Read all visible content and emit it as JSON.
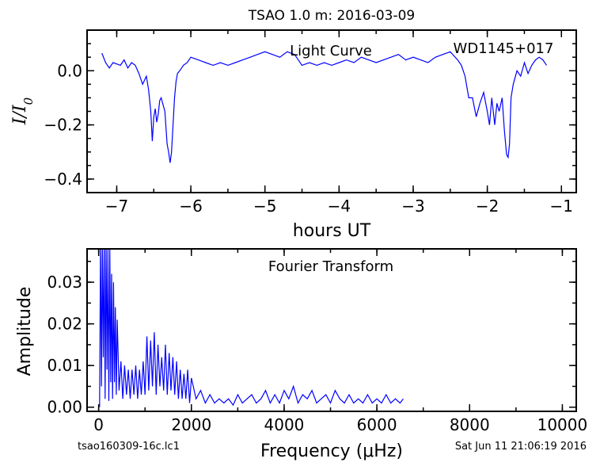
{
  "figure_title": "TSAO 1.0 m:  2016-03-09",
  "footer_left": "tsao160309-16c.lc1",
  "footer_right": "Sat Jun 11 21:06:19 2016",
  "chart_data": [
    {
      "type": "line",
      "annotation_left": "Light Curve",
      "annotation_right": "WD1145+017",
      "xlabel": "hours UT",
      "ylabel": "I/I0",
      "xlim": [
        -7.4,
        -0.8
      ],
      "ylim": [
        -0.45,
        0.15
      ],
      "xticks": [
        -7,
        -6,
        -5,
        -4,
        -3,
        -2,
        -1
      ],
      "xtick_labels": [
        "−7",
        "−6",
        "−5",
        "−4",
        "−3",
        "−2",
        "−1"
      ],
      "yticks": [
        0.0,
        -0.2,
        -0.4
      ],
      "ytick_labels": [
        "0.0",
        "−0.2",
        "−0.4"
      ],
      "color": "#0000ff",
      "series": [
        {
          "x": [
            -7.2,
            -7.15,
            -7.1,
            -7.05,
            -7.0,
            -6.95,
            -6.9,
            -6.85,
            -6.8,
            -6.75,
            -6.7,
            -6.65,
            -6.6,
            -6.57,
            -6.54,
            -6.52,
            -6.5,
            -6.48,
            -6.46,
            -6.44,
            -6.42,
            -6.4,
            -6.38,
            -6.35,
            -6.32,
            -6.3,
            -6.28,
            -6.26,
            -6.24,
            -6.22,
            -6.2,
            -6.18,
            -6.15,
            -6.1,
            -6.05,
            -6.0,
            -5.9,
            -5.8,
            -5.7,
            -5.6,
            -5.5,
            -5.4,
            -5.3,
            -5.2,
            -5.1,
            -5.0,
            -4.9,
            -4.8,
            -4.7,
            -4.6,
            -4.5,
            -4.4,
            -4.3,
            -4.2,
            -4.1,
            -4.0,
            -3.9,
            -3.8,
            -3.7,
            -3.6,
            -3.5,
            -3.4,
            -3.3,
            -3.2,
            -3.1,
            -3.0,
            -2.9,
            -2.8,
            -2.7,
            -2.6,
            -2.5,
            -2.4,
            -2.35,
            -2.3,
            -2.25,
            -2.2,
            -2.15,
            -2.1,
            -2.05,
            -2.0,
            -1.97,
            -1.94,
            -1.9,
            -1.87,
            -1.84,
            -1.8,
            -1.77,
            -1.74,
            -1.72,
            -1.7,
            -1.68,
            -1.65,
            -1.6,
            -1.55,
            -1.5,
            -1.45,
            -1.4,
            -1.35,
            -1.3,
            -1.25,
            -1.2
          ],
          "y": [
            0.065,
            0.03,
            0.01,
            0.03,
            0.025,
            0.02,
            0.04,
            0.01,
            0.03,
            0.02,
            -0.01,
            -0.05,
            -0.02,
            -0.07,
            -0.15,
            -0.26,
            -0.17,
            -0.14,
            -0.19,
            -0.16,
            -0.11,
            -0.1,
            -0.12,
            -0.15,
            -0.27,
            -0.3,
            -0.34,
            -0.3,
            -0.2,
            -0.1,
            -0.04,
            -0.01,
            0.0,
            0.02,
            0.03,
            0.05,
            0.04,
            0.03,
            0.02,
            0.03,
            0.02,
            0.03,
            0.04,
            0.05,
            0.06,
            0.07,
            0.06,
            0.05,
            0.07,
            0.06,
            0.02,
            0.03,
            0.02,
            0.03,
            0.02,
            0.03,
            0.04,
            0.03,
            0.05,
            0.04,
            0.03,
            0.04,
            0.05,
            0.06,
            0.04,
            0.05,
            0.04,
            0.03,
            0.05,
            0.06,
            0.07,
            0.04,
            0.02,
            -0.02,
            -0.1,
            -0.1,
            -0.17,
            -0.12,
            -0.08,
            -0.15,
            -0.2,
            -0.1,
            -0.2,
            -0.12,
            -0.15,
            -0.1,
            -0.22,
            -0.31,
            -0.32,
            -0.27,
            -0.1,
            -0.05,
            0.0,
            -0.02,
            0.03,
            -0.01,
            0.02,
            0.04,
            0.05,
            0.04,
            0.02
          ]
        }
      ]
    },
    {
      "type": "line",
      "annotation": "Fourier Transform",
      "xlabel": "Frequency (μHz)",
      "ylabel": "Amplitude",
      "xlim": [
        -250,
        10300
      ],
      "ylim": [
        -0.001,
        0.038
      ],
      "xticks": [
        0,
        2000,
        4000,
        6000,
        8000,
        10000
      ],
      "xtick_labels": [
        "0",
        "2000",
        "4000",
        "6000",
        "8000",
        "10000"
      ],
      "yticks": [
        0.0,
        0.01,
        0.02,
        0.03
      ],
      "ytick_labels": [
        "0.00",
        "0.01",
        "0.02",
        "0.03"
      ],
      "color": "#0000ff",
      "series": [
        {
          "x": [
            20,
            40,
            60,
            80,
            100,
            120,
            140,
            160,
            180,
            200,
            220,
            240,
            260,
            280,
            300,
            320,
            340,
            360,
            380,
            400,
            440,
            480,
            520,
            560,
            600,
            640,
            680,
            720,
            760,
            800,
            840,
            880,
            920,
            960,
            1000,
            1040,
            1080,
            1120,
            1160,
            1200,
            1240,
            1280,
            1320,
            1360,
            1400,
            1440,
            1480,
            1520,
            1560,
            1600,
            1640,
            1680,
            1720,
            1760,
            1800,
            1840,
            1880,
            1920,
            1960,
            2000,
            2100,
            2200,
            2300,
            2400,
            2500,
            2600,
            2700,
            2800,
            2900,
            3000,
            3100,
            3200,
            3300,
            3400,
            3500,
            3600,
            3700,
            3800,
            3900,
            4000,
            4100,
            4200,
            4300,
            4400,
            4500,
            4600,
            4700,
            4800,
            4900,
            5000,
            5100,
            5200,
            5300,
            5400,
            5500,
            5600,
            5700,
            5800,
            5900,
            6000,
            6100,
            6200,
            6300,
            6400,
            6500,
            6570
          ],
          "y": [
            0.0,
            0.04,
            0.005,
            0.04,
            0.012,
            0.04,
            0.002,
            0.04,
            0.009,
            0.038,
            0.0015,
            0.038,
            0.006,
            0.032,
            0.002,
            0.03,
            0.006,
            0.024,
            0.003,
            0.021,
            0.004,
            0.011,
            0.002,
            0.01,
            0.003,
            0.009,
            0.002,
            0.009,
            0.003,
            0.01,
            0.002,
            0.009,
            0.003,
            0.011,
            0.003,
            0.017,
            0.004,
            0.016,
            0.005,
            0.018,
            0.003,
            0.015,
            0.005,
            0.012,
            0.004,
            0.015,
            0.003,
            0.013,
            0.004,
            0.012,
            0.003,
            0.011,
            0.002,
            0.009,
            0.002,
            0.008,
            0.002,
            0.009,
            0.001,
            0.007,
            0.002,
            0.004,
            0.001,
            0.003,
            0.001,
            0.002,
            0.001,
            0.002,
            0.0005,
            0.003,
            0.001,
            0.002,
            0.003,
            0.001,
            0.002,
            0.004,
            0.001,
            0.003,
            0.001,
            0.004,
            0.002,
            0.005,
            0.001,
            0.003,
            0.002,
            0.004,
            0.001,
            0.002,
            0.003,
            0.001,
            0.004,
            0.002,
            0.001,
            0.003,
            0.001,
            0.002,
            0.001,
            0.003,
            0.001,
            0.002,
            0.001,
            0.003,
            0.001,
            0.002,
            0.001,
            0.002
          ]
        }
      ]
    }
  ]
}
